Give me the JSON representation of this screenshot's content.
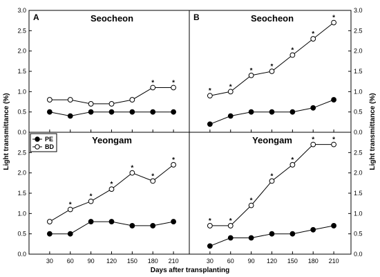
{
  "chart_data": {
    "type": "line",
    "ylabel_left": "Light transmittance (%)",
    "ylabel_right": "Light transmittance (%)",
    "xlabel": "Days after transplanting",
    "x": [
      30,
      60,
      90,
      120,
      150,
      180,
      210
    ],
    "x_ticks": [
      "30",
      "60",
      "90",
      "120",
      "150",
      "180",
      "210"
    ],
    "ylim": [
      0,
      3.0
    ],
    "y_ticks": [
      "0.0",
      "0.5",
      "1.0",
      "1.5",
      "2.0",
      "2.5",
      "3.0"
    ],
    "legend": {
      "placement": "top-left of lower-left panel",
      "entries": [
        {
          "name": "PE",
          "marker": "filled-circle"
        },
        {
          "name": "BD",
          "marker": "open-circle"
        }
      ]
    },
    "panels": [
      {
        "id": "top-left",
        "letter": "A",
        "title": "Seocheon",
        "series": [
          {
            "name": "PE",
            "values": [
              0.5,
              0.4,
              0.5,
              0.5,
              0.5,
              0.5,
              0.5
            ]
          },
          {
            "name": "BD",
            "values": [
              0.8,
              0.8,
              0.7,
              0.7,
              0.8,
              1.1,
              1.1
            ]
          }
        ],
        "significance": [
          false,
          false,
          false,
          false,
          false,
          true,
          true
        ]
      },
      {
        "id": "top-right",
        "letter": "B",
        "title": "Seocheon",
        "series": [
          {
            "name": "PE",
            "values": [
              0.2,
              0.4,
              0.5,
              0.5,
              0.5,
              0.6,
              0.8
            ]
          },
          {
            "name": "BD",
            "values": [
              0.9,
              1.0,
              1.4,
              1.5,
              1.9,
              2.3,
              2.7
            ]
          }
        ],
        "significance": [
          true,
          true,
          true,
          true,
          true,
          true,
          true
        ]
      },
      {
        "id": "bottom-left",
        "letter": "",
        "title": "Yeongam",
        "series": [
          {
            "name": "PE",
            "values": [
              0.5,
              0.5,
              0.8,
              0.8,
              0.7,
              0.7,
              0.8
            ]
          },
          {
            "name": "BD",
            "values": [
              0.8,
              1.1,
              1.3,
              1.6,
              2.0,
              1.8,
              2.2
            ]
          }
        ],
        "significance": [
          false,
          true,
          true,
          true,
          true,
          true,
          true
        ]
      },
      {
        "id": "bottom-right",
        "letter": "",
        "title": "Yeongam",
        "series": [
          {
            "name": "PE",
            "values": [
              0.2,
              0.4,
              0.4,
              0.5,
              0.5,
              0.6,
              0.7
            ]
          },
          {
            "name": "BD",
            "values": [
              0.7,
              0.7,
              1.2,
              1.8,
              2.2,
              2.7,
              2.7
            ]
          }
        ],
        "significance": [
          true,
          true,
          true,
          true,
          true,
          true,
          true
        ]
      }
    ],
    "star_symbol": "*"
  }
}
